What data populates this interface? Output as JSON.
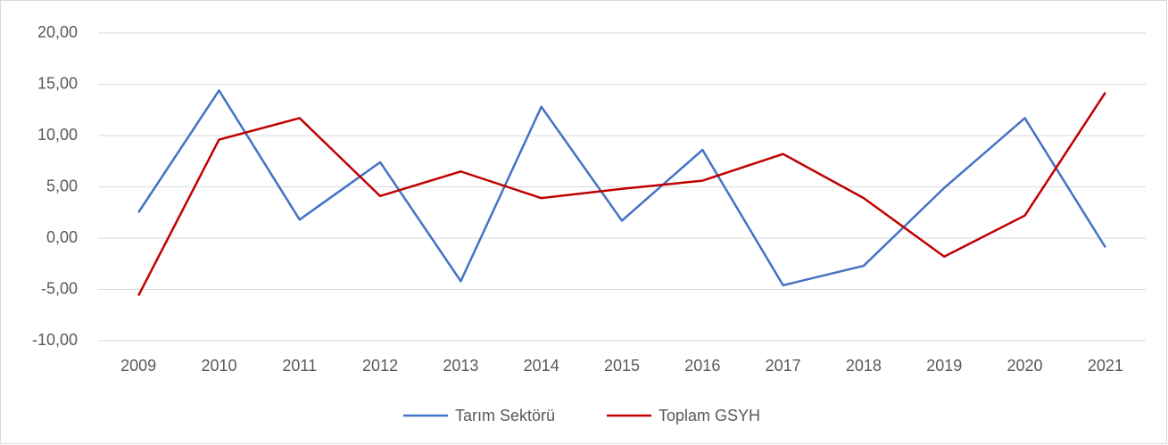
{
  "chart_data": {
    "type": "line",
    "categories": [
      "2009",
      "2010",
      "2011",
      "2012",
      "2013",
      "2014",
      "2015",
      "2016",
      "2017",
      "2018",
      "2019",
      "2020",
      "2021"
    ],
    "series": [
      {
        "name": "Tarım Sektörü",
        "color": "#4472c4",
        "values": [
          2.5,
          14.4,
          1.8,
          7.4,
          -4.2,
          12.8,
          1.7,
          8.6,
          -4.6,
          -2.7,
          4.9,
          11.7,
          -0.9
        ]
      },
      {
        "name": "Toplam GSYH",
        "color": "#c00000",
        "values": [
          -5.6,
          9.6,
          11.7,
          4.1,
          6.5,
          3.9,
          4.8,
          5.6,
          8.2,
          3.9,
          -1.8,
          2.2,
          14.2
        ]
      }
    ],
    "ylim": [
      -10,
      20
    ],
    "yticks": [
      {
        "value": -10,
        "label": "-10,00"
      },
      {
        "value": -5,
        "label": "-5,00"
      },
      {
        "value": 0,
        "label": "0,00"
      },
      {
        "value": 5,
        "label": "5,00"
      },
      {
        "value": 10,
        "label": "10,00"
      },
      {
        "value": 15,
        "label": "15,00"
      },
      {
        "value": 20,
        "label": "20,00"
      }
    ],
    "grid": true,
    "legend": "bottom"
  }
}
